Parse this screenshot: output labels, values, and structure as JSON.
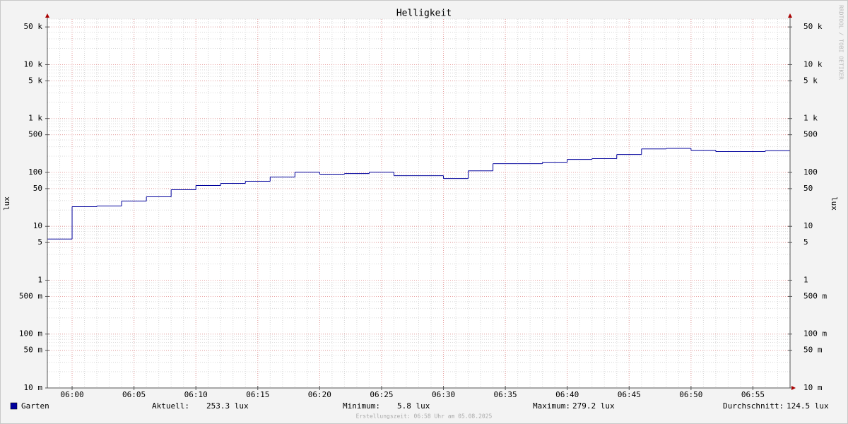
{
  "chart_data": {
    "type": "step",
    "title": "Helligkeit",
    "y_label": "lux",
    "watermark": "RRDTOOL / TOBI OETIKER",
    "log_scale": true,
    "grid": true,
    "x": [
      "05:58",
      "06:00",
      "06:02",
      "06:04",
      "06:06",
      "06:08",
      "06:10",
      "06:12",
      "06:14",
      "06:16",
      "06:18",
      "06:20",
      "06:22",
      "06:24",
      "06:26",
      "06:28",
      "06:30",
      "06:32",
      "06:34",
      "06:36",
      "06:38",
      "06:40",
      "06:42",
      "06:44",
      "06:46",
      "06:48",
      "06:50",
      "06:52",
      "06:54",
      "06:56"
    ],
    "xlim": [
      "05:58",
      "06:58"
    ],
    "xticks": [
      "06:00",
      "06:05",
      "06:10",
      "06:15",
      "06:20",
      "06:25",
      "06:30",
      "06:35",
      "06:40",
      "06:45",
      "06:50",
      "06:55"
    ],
    "ylim": [
      0.01,
      70000
    ],
    "yticks": [
      {
        "value": 0.01,
        "label": "10 m"
      },
      {
        "value": 0.05,
        "label": "50 m"
      },
      {
        "value": 0.1,
        "label": "100 m"
      },
      {
        "value": 0.5,
        "label": "500 m"
      },
      1,
      5,
      10,
      50,
      100,
      500,
      {
        "value": 1000,
        "label": "1 k"
      },
      {
        "value": 5000,
        "label": "5 k"
      },
      {
        "value": 10000,
        "label": "10 k"
      },
      {
        "value": 50000,
        "label": "50 k"
      }
    ],
    "series": [
      {
        "name": "Garten",
        "color": "#00009c",
        "values": [
          5.8,
          23.1,
          23.8,
          29.4,
          35.2,
          47.6,
          57.1,
          62.5,
          68.4,
          82,
          101,
          92.5,
          95,
          101,
          87,
          87,
          77,
          107,
          145,
          145,
          154,
          174,
          180,
          215,
          273,
          279.2,
          258,
          243,
          243,
          253.3
        ]
      }
    ],
    "stats": [
      {
        "label": "Aktuell:",
        "value": "253.3 lux"
      },
      {
        "label": "Minimum:",
        "value": "5.8 lux"
      },
      {
        "label": "Maximum:",
        "value": "279.2 lux"
      },
      {
        "label": "Durchschnitt:",
        "value": "124.5 lux"
      }
    ],
    "footer": "Erstellungszeit: 06:58 Uhr am 05.08.2025"
  }
}
